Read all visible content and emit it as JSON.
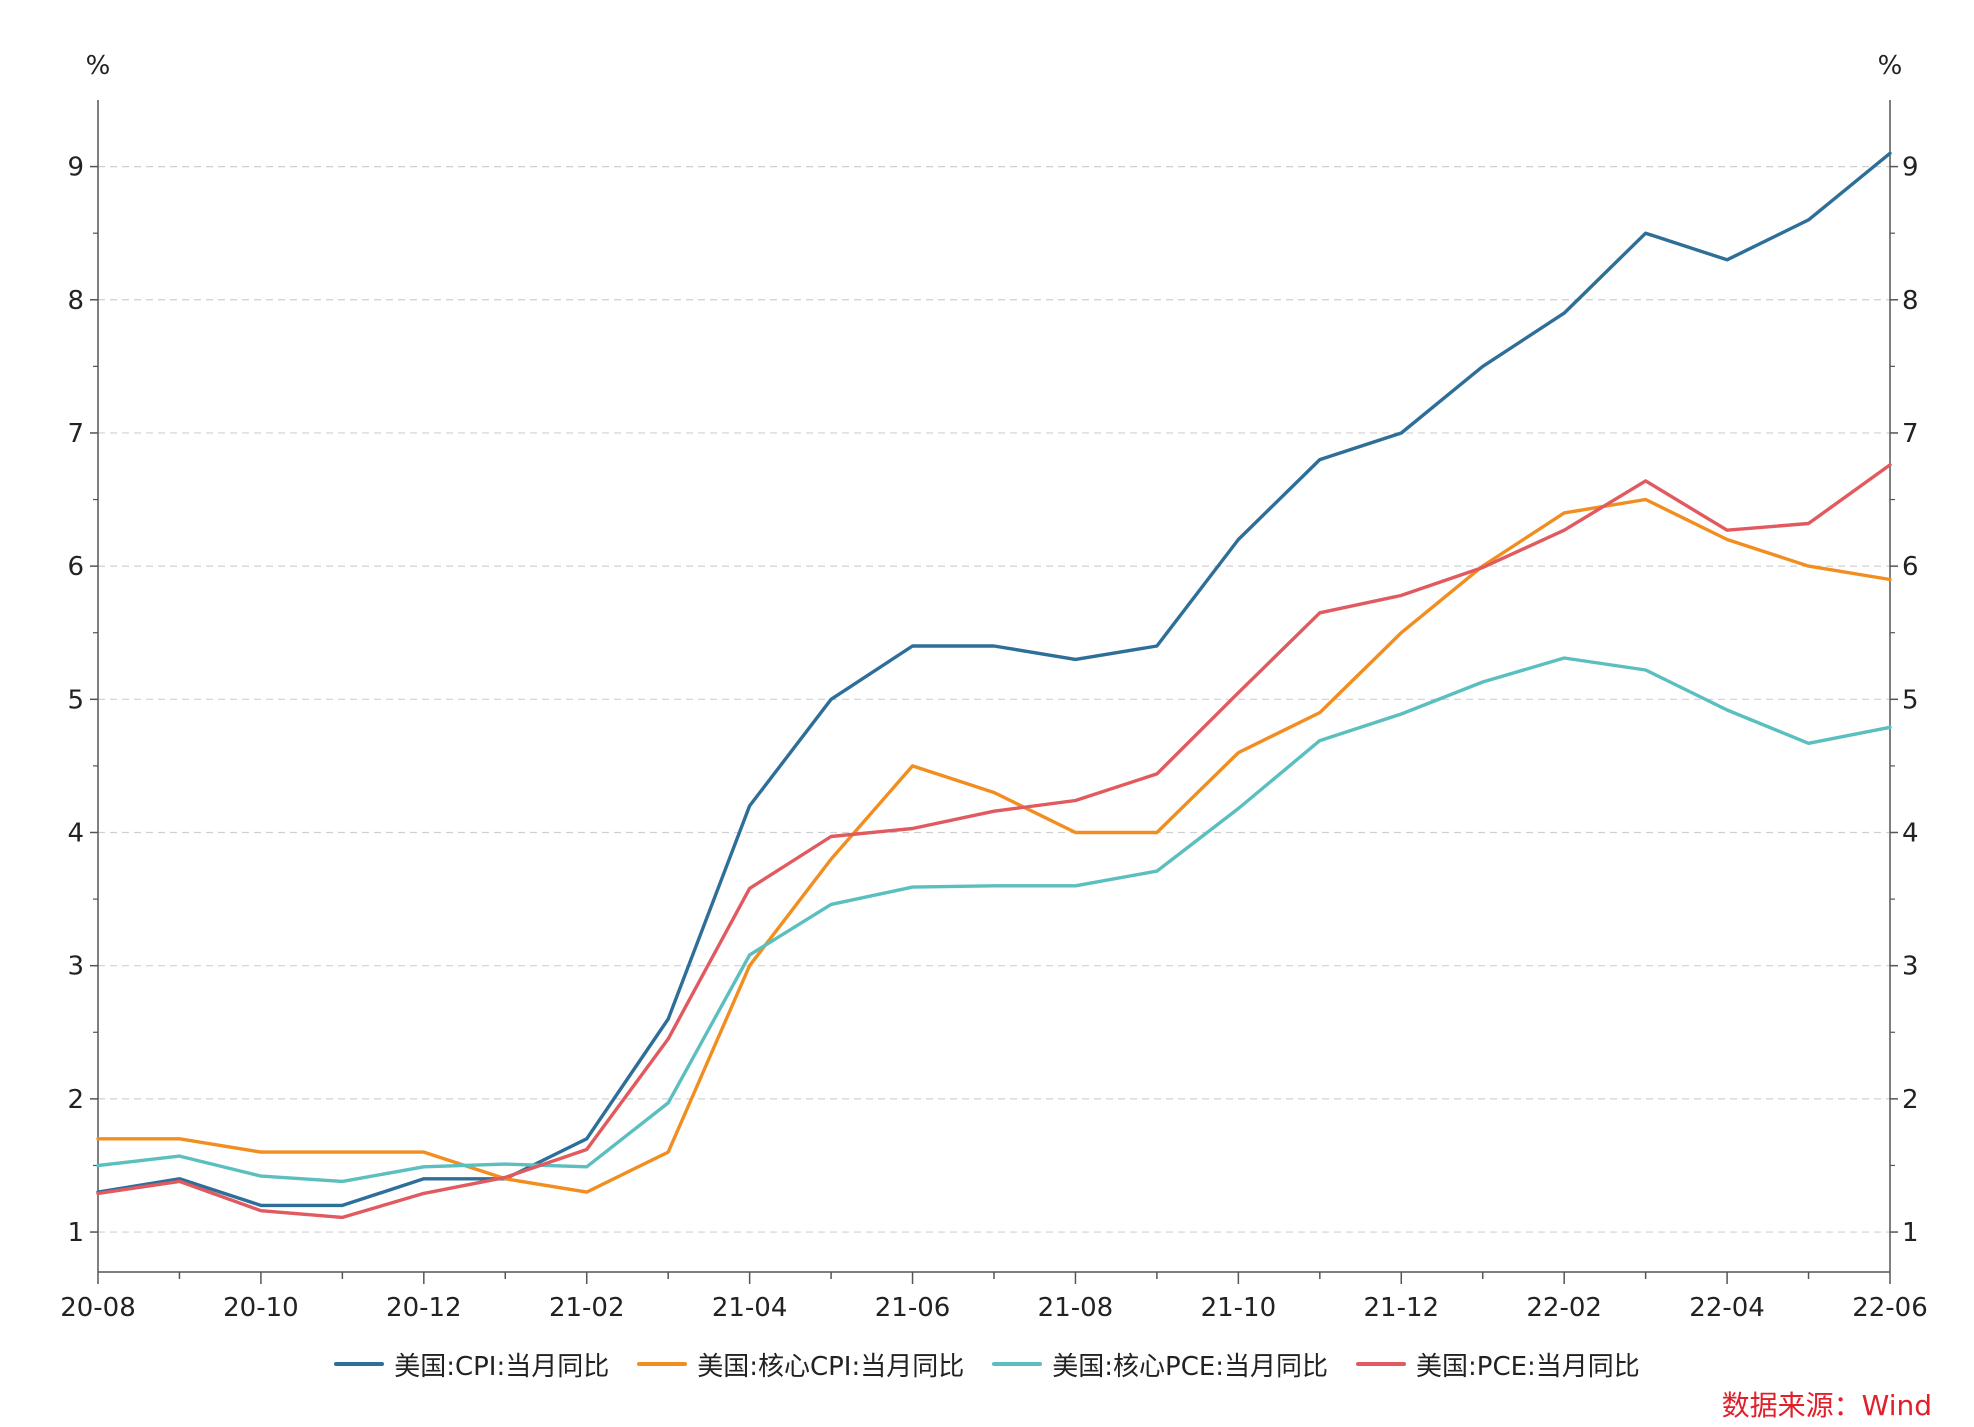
{
  "chart_data": {
    "type": "line",
    "x": [
      "20-08",
      "20-09",
      "20-10",
      "20-11",
      "20-12",
      "21-01",
      "21-02",
      "21-03",
      "21-04",
      "21-05",
      "21-06",
      "21-07",
      "21-08",
      "21-09",
      "21-10",
      "21-11",
      "21-12",
      "22-01",
      "22-02",
      "22-03",
      "22-04",
      "22-05",
      "22-06"
    ],
    "x_tick_labels": [
      "20-08",
      "20-10",
      "20-12",
      "21-02",
      "21-04",
      "21-06",
      "21-08",
      "21-10",
      "21-12",
      "22-02",
      "22-04",
      "22-06"
    ],
    "y_ticks": [
      "1",
      "2",
      "3",
      "4",
      "5",
      "6",
      "7",
      "8",
      "9"
    ],
    "ylim": [
      0.7,
      9.5
    ],
    "y_unit_left": "%",
    "y_unit_right": "%",
    "grid": "horizontal dashed",
    "legend_position": "bottom",
    "series": [
      {
        "name": "美国:CPI:当月同比",
        "color": "#2e6f99",
        "values": [
          1.3,
          1.4,
          1.2,
          1.2,
          1.4,
          1.4,
          1.7,
          2.6,
          4.2,
          5.0,
          5.4,
          5.4,
          5.3,
          5.4,
          6.2,
          6.8,
          7.0,
          7.5,
          7.9,
          8.5,
          8.3,
          8.6,
          9.1
        ]
      },
      {
        "name": "美国:核心CPI:当月同比",
        "color": "#f28e1f",
        "values": [
          1.7,
          1.7,
          1.6,
          1.6,
          1.6,
          1.4,
          1.3,
          1.6,
          3.0,
          3.8,
          4.5,
          4.3,
          4.0,
          4.0,
          4.6,
          4.9,
          5.5,
          6.0,
          6.4,
          6.5,
          6.2,
          6.0,
          5.9
        ]
      },
      {
        "name": "美国:核心PCE:当月同比",
        "color": "#5bbfbf",
        "values": [
          1.5,
          1.57,
          1.42,
          1.38,
          1.49,
          1.51,
          1.49,
          1.97,
          3.08,
          3.46,
          3.59,
          3.6,
          3.6,
          3.71,
          4.18,
          4.69,
          4.89,
          5.13,
          5.31,
          5.22,
          4.92,
          4.67,
          4.79
        ]
      },
      {
        "name": "美国:PCE:当月同比",
        "color": "#e05a5f",
        "values": [
          1.29,
          1.38,
          1.16,
          1.11,
          1.29,
          1.41,
          1.62,
          2.45,
          3.58,
          3.97,
          4.03,
          4.16,
          4.24,
          4.44,
          5.05,
          5.65,
          5.78,
          5.99,
          6.27,
          6.64,
          6.27,
          6.32,
          6.76
        ]
      }
    ]
  },
  "source_note": "数据来源：Wind"
}
